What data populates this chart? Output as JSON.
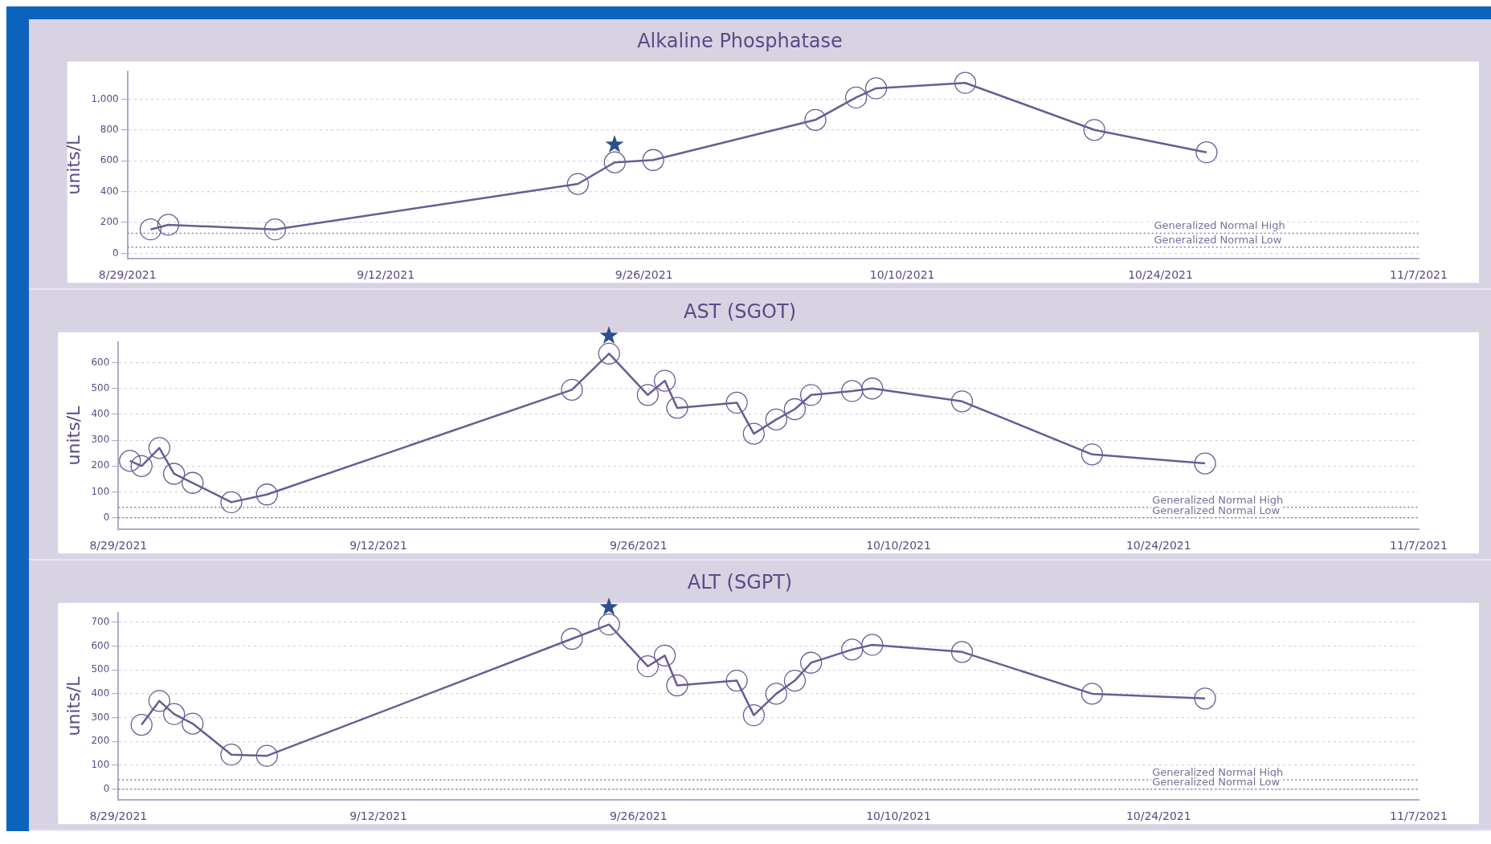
{
  "chart_data": [
    {
      "type": "line",
      "title": "Alkaline Phosphatase",
      "ylabel": "units/L",
      "marker": "circle",
      "grid": "y",
      "x": [
        "2021-08-30T06:00",
        "2021-08-31T05:00",
        "2021-09-06",
        "2021-09-22T10:00",
        "2021-09-24T10:00",
        "2021-09-26T12:00",
        "2021-10-05T07:00",
        "2021-10-07T12:00",
        "2021-10-08T14:00",
        "2021-10-13T10:00",
        "2021-10-20T10:00",
        "2021-10-26T12:00"
      ],
      "series": [
        {
          "color": "#6b5b95",
          "values": [
            155,
            185,
            155,
            450,
            590,
            605,
            865,
            1010,
            1070,
            1105,
            800,
            655
          ]
        }
      ],
      "xlim": [
        "2021-08-29",
        "2021-11-07"
      ],
      "xticks": [
        {
          "value": "2021-08-29",
          "label": "8/29/2021"
        },
        {
          "value": "2021-09-12",
          "label": "9/12/2021"
        },
        {
          "value": "2021-09-26",
          "label": "9/26/2021"
        },
        {
          "value": "2021-10-10",
          "label": "10/10/2021"
        },
        {
          "value": "2021-10-24",
          "label": "10/24/2021"
        },
        {
          "value": "2021-11-07",
          "label": "11/7/2021"
        }
      ],
      "ylim": [
        -35,
        1180
      ],
      "yticks": [
        0,
        200,
        400,
        600,
        800,
        {
          "value": 1000,
          "label": "1,000"
        }
      ],
      "ref_lines": [
        {
          "axis": "y",
          "value": 130,
          "label": "Generalized Normal High",
          "line_style": "dotted"
        },
        {
          "axis": "y",
          "value": 40,
          "label": "Generalized Normal Low",
          "line_style": "dotted"
        }
      ]
    },
    {
      "type": "line",
      "title": "AST (SGOT)",
      "ylabel": "units/L",
      "marker": "circle",
      "grid": "y",
      "x": [
        "2021-08-29T15:00",
        "2021-08-30T06:00",
        "2021-08-31T05:00",
        "2021-09-01",
        "2021-09-02",
        "2021-09-04T02:00",
        "2021-09-06",
        "2021-09-22T10:00",
        "2021-09-24T10:00",
        "2021-09-26T12:00",
        "2021-09-27T10:00",
        "2021-09-28T02:00",
        "2021-10-01T07:00",
        "2021-10-02T05:00",
        "2021-10-03T10:00",
        "2021-10-04T10:00",
        "2021-10-05T07:00",
        "2021-10-07T12:00",
        "2021-10-08T14:00",
        "2021-10-13T10:00",
        "2021-10-20T10:00",
        "2021-10-26T12:00"
      ],
      "series": [
        {
          "color": "#6b5b95",
          "values": [
            220,
            200,
            270,
            170,
            135,
            60,
            90,
            495,
            635,
            475,
            530,
            425,
            445,
            325,
            380,
            420,
            475,
            490,
            500,
            450,
            245,
            210
          ]
        }
      ],
      "xlim": [
        "2021-08-29",
        "2021-11-07"
      ],
      "xticks": [
        {
          "value": "2021-08-29",
          "label": "8/29/2021"
        },
        {
          "value": "2021-09-12",
          "label": "9/12/2021"
        },
        {
          "value": "2021-09-26",
          "label": "9/26/2021"
        },
        {
          "value": "2021-10-10",
          "label": "10/10/2021"
        },
        {
          "value": "2021-10-24",
          "label": "10/24/2021"
        },
        {
          "value": "2021-11-07",
          "label": "11/7/2021"
        }
      ],
      "ylim": [
        -45,
        680
      ],
      "yticks": [
        0,
        100,
        200,
        300,
        400,
        500,
        600
      ],
      "ref_lines": [
        {
          "axis": "y",
          "value": 40,
          "label": "Generalized Normal High",
          "line_style": "dotted"
        },
        {
          "axis": "y",
          "value": 0,
          "label": "Generalized Normal Low",
          "line_style": "dotted"
        }
      ]
    },
    {
      "type": "line",
      "title": "ALT (SGPT)",
      "ylabel": "units/L",
      "marker": "circle",
      "grid": "y",
      "x": [
        "2021-08-30T06:00",
        "2021-08-31T05:00",
        "2021-09-01",
        "2021-09-02",
        "2021-09-04T02:00",
        "2021-09-06",
        "2021-09-22T10:00",
        "2021-09-24T10:00",
        "2021-09-26T12:00",
        "2021-09-27T10:00",
        "2021-09-28T02:00",
        "2021-10-01T07:00",
        "2021-10-02T05:00",
        "2021-10-03T10:00",
        "2021-10-04T10:00",
        "2021-10-05T07:00",
        "2021-10-07T12:00",
        "2021-10-08T14:00",
        "2021-10-13T10:00",
        "2021-10-20T10:00",
        "2021-10-26T12:00"
      ],
      "series": [
        {
          "color": "#6b5b95",
          "values": [
            270,
            370,
            315,
            275,
            145,
            140,
            630,
            690,
            515,
            560,
            435,
            455,
            310,
            400,
            455,
            530,
            585,
            605,
            575,
            400,
            380
          ]
        }
      ],
      "xlim": [
        "2021-08-29",
        "2021-11-07"
      ],
      "xticks": [
        {
          "value": "2021-08-29",
          "label": "8/29/2021"
        },
        {
          "value": "2021-09-12",
          "label": "9/12/2021"
        },
        {
          "value": "2021-09-26",
          "label": "9/26/2021"
        },
        {
          "value": "2021-10-10",
          "label": "10/10/2021"
        },
        {
          "value": "2021-10-24",
          "label": "10/24/2021"
        },
        {
          "value": "2021-11-07",
          "label": "11/7/2021"
        }
      ],
      "ylim": [
        -45,
        740
      ],
      "yticks": [
        0,
        100,
        200,
        300,
        400,
        500,
        600,
        700
      ],
      "ref_lines": [
        {
          "axis": "y",
          "value": 40,
          "label": "Generalized Normal High",
          "line_style": "dotted"
        },
        {
          "axis": "y",
          "value": 0,
          "label": "Generalized Normal Low",
          "line_style": "dotted"
        }
      ]
    }
  ]
}
